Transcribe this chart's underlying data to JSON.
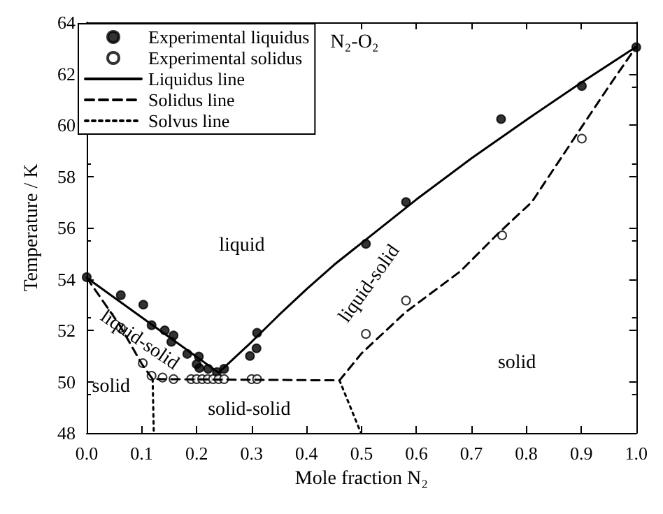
{
  "chart_data": {
    "type": "scatter",
    "xlabel": "Mole fraction N₂",
    "ylabel": "Temperature / K",
    "xlim": [
      0,
      1
    ],
    "ylim": [
      48,
      64
    ],
    "xticks": [
      {
        "value": 0,
        "label": "0.0"
      },
      0.1,
      0.2,
      0.3,
      0.4,
      0.5,
      0.6,
      0.7,
      0.8,
      0.9,
      {
        "value": 1,
        "label": "1.0"
      }
    ],
    "yticks": [
      48,
      50,
      52,
      54,
      56,
      58,
      60,
      62,
      64
    ],
    "legend": "top left",
    "grid": false,
    "series": [
      {
        "name": "Experimental liquidus",
        "marker": "circle",
        "color": "#000000",
        "x": [
          0,
          0.062,
          0.103,
          0.118,
          0.142,
          0.158,
          0.154,
          0.183,
          0.204,
          0.2,
          0.205,
          0.221,
          0.237,
          0.25,
          0.297,
          0.309,
          0.31,
          0.508,
          0.581,
          0.754,
          0.901,
          1.0
        ],
        "values": [
          54.07,
          53.37,
          53.0,
          52.2,
          52.0,
          51.8,
          51.55,
          51.08,
          50.98,
          50.68,
          50.53,
          50.5,
          50.37,
          50.5,
          51.0,
          51.3,
          51.9,
          55.37,
          57.0,
          60.23,
          61.52,
          63.03
        ]
      },
      {
        "name": "Experimental solidus",
        "marker": "circle",
        "color": "#000000",
        "x": [
          0.062,
          0.102,
          0.118,
          0.138,
          0.158,
          0.19,
          0.2,
          0.21,
          0.22,
          0.23,
          0.24,
          0.25,
          0.3,
          0.31,
          0.508,
          0.581,
          0.756,
          0.901
        ],
        "values": [
          52.1,
          50.72,
          50.23,
          50.16,
          50.1,
          50.1,
          50.1,
          50.1,
          50.1,
          50.1,
          50.1,
          50.1,
          50.1,
          50.1,
          51.86,
          53.16,
          55.7,
          59.47
        ]
      },
      {
        "name": "Liquidus line",
        "type": "line",
        "line_style": "solid",
        "color": "#000000",
        "x": [
          0,
          0.24,
          0.3,
          0.35,
          0.4,
          0.45,
          0.5,
          0.6,
          0.7,
          0.8,
          0.9,
          1.0
        ],
        "values": [
          54.05,
          50.35,
          51.55,
          52.6,
          53.6,
          54.55,
          55.4,
          57.1,
          58.7,
          60.2,
          61.65,
          63.05
        ]
      },
      {
        "name": "Solidus line",
        "type": "line",
        "line_style": "dashed",
        "color": "#000000",
        "x": [
          0,
          0.06,
          0.1,
          0.12,
          0.46,
          0.5,
          0.58,
          0.68,
          0.75,
          0.81,
          0.9,
          0.95,
          1.0
        ],
        "values": [
          54.05,
          52.2,
          50.7,
          50.1,
          50.05,
          51.1,
          52.7,
          54.3,
          55.8,
          57.0,
          59.9,
          61.5,
          63.05
        ]
      },
      {
        "name": "Solvus line",
        "type": "line",
        "line_style": "dotted",
        "color": "#000000",
        "x": [
          0.12,
          0.122,
          null,
          0.46,
          0.499
        ],
        "values": [
          50.1,
          48,
          null,
          50.05,
          48
        ]
      }
    ],
    "annotations": [
      "N₂-O₂",
      "liquid",
      "liquid-solid",
      "liquid-solid",
      "solid",
      "solid-solid",
      "solid"
    ]
  }
}
